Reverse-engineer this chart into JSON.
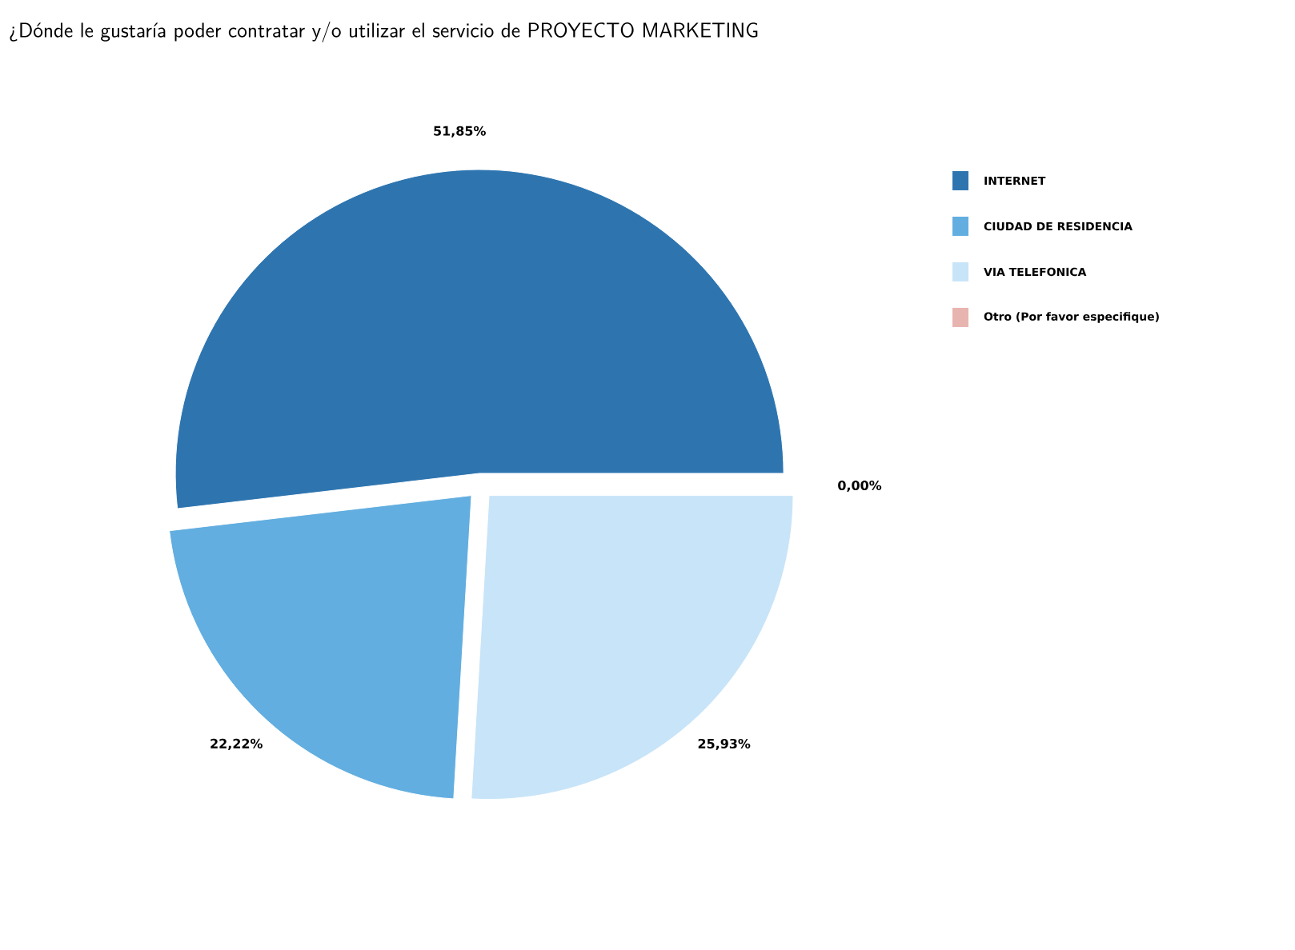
{
  "chart_data": {
    "type": "pie",
    "title": "¿Dónde le gustaría poder contratar y/o utilizar el servicio de PROYECTO MARKETING",
    "categories": [
      "INTERNET",
      "CIUDAD DE RESIDENCIA",
      "VIA TELEFONICA",
      "Otro (Por favor especifique)"
    ],
    "values": [
      51.85,
      22.22,
      25.93,
      0.0
    ],
    "colors": [
      "#2e75b0",
      "#62aee0",
      "#c8e4f8",
      "#e8b4b0"
    ],
    "value_labels": [
      "51,85%",
      "22,22%",
      "25,93%",
      "0,00%"
    ],
    "legend": "top right"
  }
}
